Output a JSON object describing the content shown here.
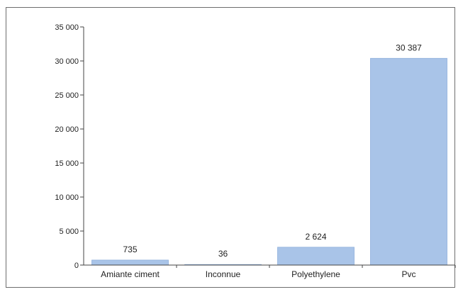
{
  "chart_data": {
    "type": "bar",
    "categories": [
      "Amiante ciment",
      "Inconnue",
      "Polyethylene",
      "Pvc"
    ],
    "values": [
      735,
      36,
      2624,
      30387
    ],
    "value_labels": [
      "735",
      "36",
      "2 624",
      "30 387"
    ],
    "ylim": [
      0,
      35000
    ],
    "yticks": [
      0,
      5000,
      10000,
      15000,
      20000,
      25000,
      30000,
      35000
    ],
    "ytick_labels": [
      "0",
      "5 000",
      "10 000",
      "15 000",
      "20 000",
      "25 000",
      "30 000",
      "35 000"
    ],
    "grid": false,
    "legend": "none",
    "bar_color": "#a9c4e8",
    "bar_edge_color": "#8fb0dc"
  }
}
